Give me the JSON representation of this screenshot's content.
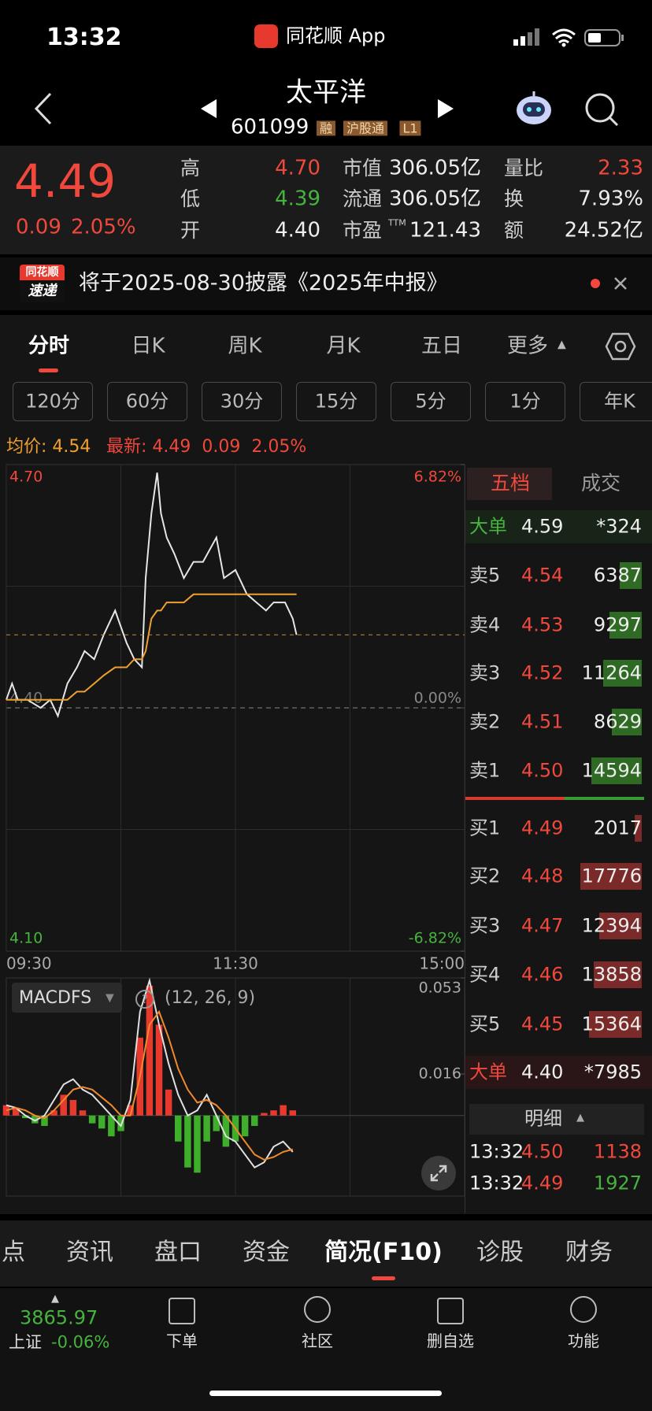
{
  "status_bar": {
    "time": "13:32",
    "app": "同花顺 App"
  },
  "header": {
    "title": "太平洋",
    "code": "601099",
    "badges": [
      "融",
      "沪股通",
      "L1"
    ]
  },
  "quote": {
    "price": "4.49",
    "change": "0.09",
    "change_pct": "2.05%",
    "stats": [
      {
        "label": "高",
        "value": "4.70"
      },
      {
        "label": "低",
        "value": "4.39"
      },
      {
        "label": "开",
        "value": "4.40"
      },
      {
        "label": "市值",
        "value": "306.05亿"
      },
      {
        "label": "流通",
        "value": "306.05亿"
      },
      {
        "label": "市盈",
        "sup": "TTM",
        "value": "121.43"
      },
      {
        "label": "量比",
        "value": "2.33"
      },
      {
        "label": "换",
        "value": "7.93%"
      },
      {
        "label": "额",
        "value": "24.52亿"
      }
    ]
  },
  "banner": {
    "logo_top": "同花顺",
    "logo_bottom": "速递",
    "text": "将于2025-08-30披露《2025年中报》"
  },
  "tabs": [
    "分时",
    "日K",
    "周K",
    "月K",
    "五日",
    "更多"
  ],
  "periods": [
    "120分",
    "60分",
    "30分",
    "15分",
    "5分",
    "1分",
    "年K"
  ],
  "info": {
    "avg_label": "均价:",
    "avg": "4.54",
    "last_label": "最新:",
    "last": "4.49",
    "change": "0.09",
    "change_pct": "2.05%"
  },
  "chart_data": [
    {
      "type": "line",
      "x": [
        0,
        3,
        6,
        11,
        18,
        23,
        27,
        32,
        37,
        41,
        46,
        51,
        57,
        63,
        67,
        71,
        73,
        76,
        79,
        81,
        84,
        88,
        93,
        98,
        103,
        110,
        114,
        120,
        126,
        131,
        136,
        140,
        146,
        150,
        152
      ],
      "series": [
        {
          "color": "#e6e6e6",
          "values": [
            4.41,
            4.43,
            4.41,
            4.41,
            4.4,
            4.41,
            4.39,
            4.43,
            4.45,
            4.47,
            4.46,
            4.49,
            4.52,
            4.48,
            4.46,
            4.45,
            4.56,
            4.64,
            4.69,
            4.64,
            4.61,
            4.59,
            4.56,
            4.58,
            4.58,
            4.61,
            4.56,
            4.57,
            4.54,
            4.53,
            4.52,
            4.53,
            4.53,
            4.51,
            4.49
          ]
        },
        {
          "color": "#f0a030",
          "values": [
            4.41,
            4.41,
            4.41,
            4.41,
            4.41,
            4.41,
            4.41,
            4.41,
            4.42,
            4.42,
            4.43,
            4.44,
            4.45,
            4.45,
            4.46,
            4.46,
            4.47,
            4.51,
            4.52,
            4.52,
            4.53,
            4.53,
            4.53,
            4.54,
            4.54,
            4.54,
            4.54,
            4.54,
            4.54,
            4.54,
            4.54,
            4.54,
            4.54,
            4.54,
            4.54
          ]
        }
      ],
      "xlim": [
        0,
        240
      ],
      "xticks": [
        {
          "value": 0,
          "label": "09:30"
        },
        {
          "value": 120,
          "label": "11:30"
        },
        {
          "value": 240,
          "label": "15:00"
        }
      ],
      "ylim": [
        4.1,
        4.7
      ],
      "yticks": [
        {
          "value": 4.7,
          "label": "4.70"
        },
        {
          "value": 4.4,
          "label": "4.40"
        },
        {
          "value": 4.1,
          "label": "4.10"
        }
      ],
      "y2lim": [
        -6.82,
        6.82
      ],
      "y2ticks": [
        {
          "value": 6.82,
          "label": "6.82%"
        },
        {
          "value": 0,
          "label": "0.00%"
        },
        {
          "value": -6.82,
          "label": "-6.82%"
        }
      ]
    },
    {
      "type": "bar",
      "name": "MACDFS",
      "params": "(12, 26, 9)",
      "x": [
        0,
        5,
        10,
        15,
        20,
        25,
        30,
        35,
        40,
        45,
        50,
        55,
        60,
        65,
        70,
        75,
        80,
        85,
        90,
        95,
        100,
        105,
        110,
        115,
        120,
        125,
        130,
        135,
        140,
        145,
        150
      ],
      "values": [
        0.004,
        0.003,
        -0.001,
        -0.003,
        -0.004,
        0.002,
        0.008,
        0.006,
        0.002,
        -0.003,
        -0.005,
        -0.008,
        -0.006,
        0.004,
        0.03,
        0.05,
        0.035,
        0.01,
        -0.01,
        -0.02,
        -0.022,
        -0.01,
        -0.006,
        -0.012,
        -0.01,
        -0.008,
        -0.004,
        0.001,
        0.002,
        0.004,
        0.002
      ],
      "up_color": "#e8392e",
      "down_color": "#3fae2a",
      "lines": [
        {
          "color": "#e0e0e0",
          "values": [
            0.004,
            0.003,
            0,
            -0.002,
            0,
            0.006,
            0.012,
            0.014,
            0.01,
            0.008,
            0.004,
            0,
            -0.004,
            0.006,
            0.04,
            0.052,
            0.035,
            0.02,
            0.008,
            0,
            0.002,
            0.008,
            0,
            -0.008,
            -0.01,
            -0.015,
            -0.02,
            -0.018,
            -0.012,
            -0.01,
            -0.014
          ]
        },
        {
          "color": "#f08a2c",
          "values": [
            0.002,
            0.003,
            0.002,
            0,
            -0.001,
            0.002,
            0.006,
            0.01,
            0.011,
            0.01,
            0.007,
            0.004,
            0,
            0,
            0.015,
            0.035,
            0.04,
            0.03,
            0.018,
            0.01,
            0.005,
            0.006,
            0.004,
            0,
            -0.005,
            -0.01,
            -0.015,
            -0.017,
            -0.016,
            -0.014,
            -0.013
          ]
        }
      ],
      "xlim": [
        0,
        240
      ],
      "ylim": [
        -0.031,
        0.053
      ],
      "yticks": [
        0.053,
        0.016
      ]
    }
  ],
  "order_book": {
    "tabs": [
      "五档",
      "成交"
    ],
    "big_sell": {
      "label": "大单",
      "price": "4.59",
      "volume": "*324"
    },
    "asks": [
      {
        "label": "卖5",
        "price": "4.54",
        "volume": 6387
      },
      {
        "label": "卖4",
        "price": "4.53",
        "volume": 9297
      },
      {
        "label": "卖3",
        "price": "4.52",
        "volume": 11264
      },
      {
        "label": "卖2",
        "price": "4.51",
        "volume": 8629
      },
      {
        "label": "卖1",
        "price": "4.50",
        "volume": 14594
      }
    ],
    "bids": [
      {
        "label": "买1",
        "price": "4.49",
        "volume": 2017
      },
      {
        "label": "买2",
        "price": "4.48",
        "volume": 17776
      },
      {
        "label": "买3",
        "price": "4.47",
        "volume": 12394
      },
      {
        "label": "买4",
        "price": "4.46",
        "volume": 13858
      },
      {
        "label": "买5",
        "price": "4.45",
        "volume": 15364
      }
    ],
    "big_buy": {
      "label": "大单",
      "price": "4.40",
      "volume": "*7985"
    },
    "detail_title": "明细",
    "trades": [
      {
        "time": "13:32",
        "price": "4.50",
        "volume": "1138"
      },
      {
        "time": "13:32",
        "price": "4.49",
        "volume": "1927"
      }
    ]
  },
  "bottom_tabs": [
    "点",
    "资讯",
    "盘口",
    "资金",
    "简况(F10)",
    "诊股",
    "财务"
  ],
  "index": {
    "value": "3865.97",
    "name": "上证",
    "change": "-0.06%"
  },
  "nav": [
    "下单",
    "社区",
    "删自选",
    "功能"
  ]
}
